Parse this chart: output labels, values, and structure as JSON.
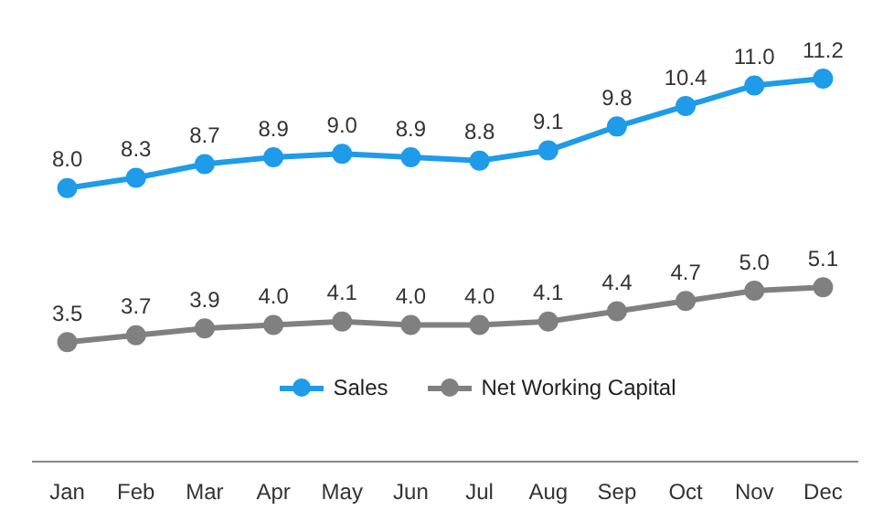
{
  "chart_data": {
    "type": "line",
    "categories": [
      "Jan",
      "Feb",
      "Mar",
      "Apr",
      "May",
      "Jun",
      "Jul",
      "Aug",
      "Sep",
      "Oct",
      "Nov",
      "Dec"
    ],
    "series": [
      {
        "name": "Sales",
        "color": "#1e9be9",
        "values": [
          8.0,
          8.3,
          8.7,
          8.9,
          9.0,
          8.9,
          8.8,
          9.1,
          9.8,
          10.4,
          11.0,
          11.2
        ],
        "value_labels": [
          "8.0",
          "8.3",
          "8.7",
          "8.9",
          "9.0",
          "8.9",
          "8.8",
          "9.1",
          "9.8",
          "10.4",
          "11.0",
          "11.2"
        ]
      },
      {
        "name": "Net Working Capital",
        "color": "#808080",
        "values": [
          3.5,
          3.7,
          3.9,
          4.0,
          4.1,
          4.0,
          4.0,
          4.1,
          4.4,
          4.7,
          5.0,
          5.1
        ],
        "value_labels": [
          "3.5",
          "3.7",
          "3.9",
          "4.0",
          "4.1",
          "4.0",
          "4.0",
          "4.1",
          "4.4",
          "4.7",
          "5.0",
          "5.1"
        ]
      }
    ],
    "marker": "circle",
    "line_style": "solid",
    "grid": false,
    "legend": "bottom",
    "tick_labels": "x"
  }
}
